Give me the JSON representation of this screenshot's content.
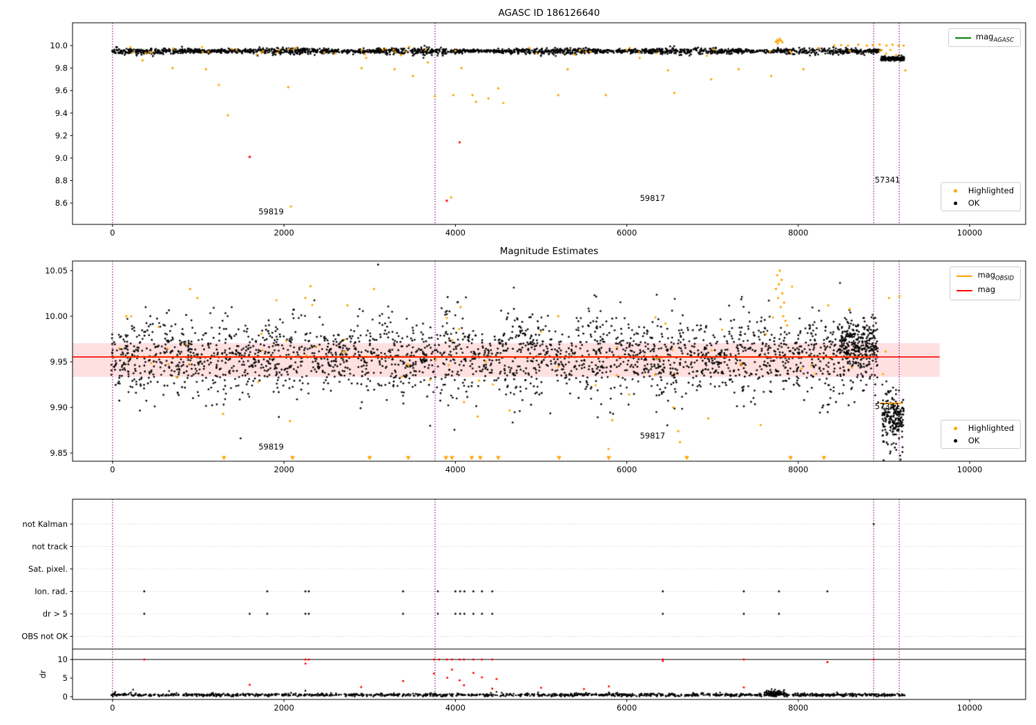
{
  "colors": {
    "ok": "#000000",
    "highlighted": "#ffa500",
    "bad": "#ff0000",
    "mag_line": "#ff0000",
    "obsid_line": "#ffa500",
    "agasc_line": "#008000",
    "vline": "#800080",
    "band_fill": "rgba(255,0,0,0.12)",
    "grid": "#b8b8b8",
    "frame": "#000000"
  },
  "chart_data": [
    {
      "id": "mag-agasc",
      "type": "scatter",
      "title": "AGASC ID 186126640",
      "xlim": [
        -467,
        10653
      ],
      "ylim": [
        8.41,
        10.203
      ],
      "xticks": [
        0,
        2000,
        4000,
        6000,
        8000,
        10000
      ],
      "yticks": [
        8.6,
        8.8,
        9.0,
        9.2,
        9.4,
        9.6,
        9.8,
        10.0
      ],
      "ytick_decimals": 1,
      "vlines": [
        0,
        3763,
        8880,
        9178
      ],
      "legend_lines": [
        {
          "prefix": "mag",
          "sub": "AGASC",
          "color": "#008000"
        }
      ],
      "legend_markers": [
        {
          "label": "Highlighted",
          "color": "#ffa500"
        },
        {
          "label": "OK",
          "color": "#000000"
        }
      ],
      "dense_series": [
        {
          "x0": -20,
          "x1": 8960,
          "mean": 9.951,
          "std": 0.016,
          "count": 2100
        },
        {
          "x0": 8960,
          "x1": 9240,
          "mean": 9.885,
          "std": 0.018,
          "count": 170
        }
      ],
      "highlighted_band": {
        "x0": 0,
        "x1": 9230,
        "mean": 9.952,
        "std": 0.022,
        "count": 55
      },
      "highlighted_points": [
        [
          350,
          9.87
        ],
        [
          700,
          9.8
        ],
        [
          1090,
          9.79
        ],
        [
          1240,
          9.65
        ],
        [
          1345,
          9.38
        ],
        [
          2050,
          9.63
        ],
        [
          2080,
          8.57
        ],
        [
          2600,
          9.93
        ],
        [
          2905,
          9.8
        ],
        [
          3290,
          9.79
        ],
        [
          3505,
          9.73
        ],
        [
          3680,
          9.85
        ],
        [
          3760,
          9.55
        ],
        [
          3950,
          8.65
        ],
        [
          3975,
          9.56
        ],
        [
          4070,
          9.8
        ],
        [
          4200,
          9.56
        ],
        [
          4240,
          9.5
        ],
        [
          4385,
          9.53
        ],
        [
          4500,
          9.62
        ],
        [
          4560,
          9.49
        ],
        [
          5200,
          9.56
        ],
        [
          5310,
          9.79
        ],
        [
          5755,
          9.56
        ],
        [
          6480,
          9.78
        ],
        [
          6555,
          9.58
        ],
        [
          6985,
          9.7
        ],
        [
          7305,
          9.79
        ],
        [
          7685,
          9.73
        ],
        [
          8060,
          9.79
        ],
        [
          9250,
          9.78
        ],
        [
          7740,
          10.035
        ],
        [
          7755,
          10.05
        ],
        [
          7770,
          10.04
        ],
        [
          7785,
          10.06
        ],
        [
          7800,
          10.045
        ],
        [
          7815,
          10.03
        ],
        [
          7760,
          10.02
        ],
        [
          8420,
          10.0
        ],
        [
          8500,
          10.005
        ],
        [
          8580,
          10.0
        ],
        [
          8700,
          10.008
        ],
        [
          8800,
          10.0
        ],
        [
          8870,
          10.005
        ],
        [
          8950,
          10.01
        ],
        [
          9030,
          10.0
        ],
        [
          9100,
          10.008
        ],
        [
          9170,
          10.0
        ],
        [
          9230,
          10.0
        ]
      ],
      "red_points": [
        [
          1600,
          9.01
        ],
        [
          3900,
          8.62
        ],
        [
          4050,
          9.14
        ]
      ],
      "annotations": [
        {
          "text": "59819",
          "x": 1850,
          "y": 8.5
        },
        {
          "text": "59817",
          "x": 6300,
          "y": 8.62
        },
        {
          "text": "57341",
          "x": 9040,
          "y": 8.78
        }
      ]
    },
    {
      "id": "magnitude-estimates",
      "type": "scatter",
      "title": "Magnitude Estimates",
      "xlim": [
        -467,
        10653
      ],
      "ylim": [
        9.841,
        10.0606
      ],
      "xticks": [
        0,
        2000,
        4000,
        6000,
        8000,
        10000
      ],
      "yticks": [
        9.85,
        9.9,
        9.95,
        10.0,
        10.05
      ],
      "ytick_decimals": 2,
      "vlines": [
        0,
        3763,
        8880,
        9178
      ],
      "legend_lines": [
        {
          "prefix": "mag",
          "sub": "OBSID",
          "color": "#ffa500"
        },
        {
          "prefix": "mag",
          "sub": "",
          "color": "#ff0000"
        }
      ],
      "legend_markers": [
        {
          "label": "Highlighted",
          "color": "#ffa500"
        },
        {
          "label": "OK",
          "color": "#000000"
        }
      ],
      "mag_band": {
        "y0": 9.9335,
        "y1": 9.9705,
        "x0": -467,
        "x1": 9650
      },
      "mag_line": {
        "y": 9.9554,
        "x0": -467,
        "x1": 9650
      },
      "obsid_segments": [
        {
          "y": 9.9554,
          "x0": -20,
          "x1": 8880
        },
        {
          "y": 9.9045,
          "x0": 8950,
          "x1": 9210
        }
      ],
      "dense_series": [
        {
          "x0": -20,
          "x1": 8950,
          "mean": 9.9555,
          "std": 0.021,
          "count": 2600,
          "modulated": true
        },
        {
          "x0": 8480,
          "x1": 8930,
          "mean": 9.972,
          "std": 0.012,
          "count": 240
        },
        {
          "x0": 8980,
          "x1": 9230,
          "mean": 9.888,
          "std": 0.015,
          "count": 200
        }
      ],
      "highlighted_band": {
        "x0": 0,
        "x1": 9200,
        "mean": 9.955,
        "std": 0.028,
        "count": 60
      },
      "highlighted_points": [
        [
          160,
          10.0
        ],
        [
          905,
          10.03
        ],
        [
          990,
          10.02
        ],
        [
          1290,
          9.893
        ],
        [
          1700,
          9.928
        ],
        [
          2070,
          9.885
        ],
        [
          2250,
          10.02
        ],
        [
          2310,
          10.033
        ],
        [
          2740,
          10.012
        ],
        [
          3050,
          10.03
        ],
        [
          3900,
          9.998
        ],
        [
          4060,
          10.01
        ],
        [
          4100,
          9.906
        ],
        [
          4260,
          9.89
        ],
        [
          5200,
          10.0
        ],
        [
          5830,
          9.886
        ],
        [
          6450,
          9.992
        ],
        [
          6540,
          9.9
        ],
        [
          6600,
          9.874
        ],
        [
          6620,
          9.862
        ],
        [
          6950,
          9.888
        ],
        [
          8350,
          10.012
        ],
        [
          8600,
          10.008
        ],
        [
          9060,
          10.02
        ],
        [
          9180,
          10.022
        ],
        [
          7740,
          10.03
        ],
        [
          7755,
          10.045
        ],
        [
          7765,
          10.02
        ],
        [
          7775,
          10.035
        ],
        [
          7785,
          10.05
        ],
        [
          7795,
          10.01
        ],
        [
          7805,
          10.04
        ],
        [
          7815,
          10.025
        ],
        [
          7825,
          10.0
        ],
        [
          7835,
          10.015
        ],
        [
          7850,
          9.995
        ],
        [
          7870,
          9.99
        ]
      ],
      "clipped_low_x": [
        1300,
        2100,
        3000,
        3450,
        3890,
        3960,
        4190,
        4290,
        4500,
        5210,
        5790,
        6700,
        7910,
        8300
      ],
      "annotations": [
        {
          "text": "59819",
          "x": 1850,
          "y": 9.854
        },
        {
          "text": "59817",
          "x": 6300,
          "y": 9.866
        },
        {
          "text": "57341",
          "x": 9040,
          "y": 9.898
        }
      ]
    },
    {
      "id": "flags",
      "type": "scatter",
      "categories": [
        "not Kalman",
        "not track",
        "Sat. pixel.",
        "Ion. rad.",
        "dr > 5",
        "OBS not OK"
      ],
      "vlines": [
        0,
        3763,
        8880,
        9178
      ],
      "points": {
        "not Kalman": [
          8880
        ],
        "Ion. rad.": [
          370,
          1805,
          2250,
          2290,
          3390,
          3795,
          4000,
          4055,
          4105,
          4210,
          4310,
          4430,
          6420,
          7365,
          7775,
          8340
        ],
        "dr > 5": [
          370,
          1600,
          1805,
          2250,
          2290,
          3390,
          3795,
          4000,
          4055,
          4105,
          4210,
          4310,
          4430,
          6420,
          7365,
          7775
        ]
      }
    },
    {
      "id": "dr",
      "type": "scatter",
      "ylabel": "dr",
      "xlim": [
        -467,
        10653
      ],
      "ylim": [
        -0.74,
        12.8
      ],
      "xticks": [
        0,
        2000,
        4000,
        6000,
        8000,
        10000
      ],
      "yticks": [
        0,
        5,
        10
      ],
      "hline": 10,
      "vlines": [
        0,
        3763,
        8880,
        9178
      ],
      "dense_series": [
        {
          "x0": -20,
          "x1": 9240,
          "mean": 0.48,
          "std": 0.2,
          "count": 1300
        }
      ],
      "bump": {
        "x0": 7600,
        "x1": 7840,
        "mean": 0.95,
        "std": 0.35,
        "count": 90
      },
      "black_points": [
        [
          240,
          1.9
        ],
        [
          660,
          1.5
        ],
        [
          2250,
          1.6
        ],
        [
          4480,
          1.3
        ],
        [
          5790,
          1.15
        ],
        [
          7690,
          2.05
        ],
        [
          7730,
          1.9
        ]
      ],
      "red_points_top": [
        [
          370,
          10
        ],
        [
          2250,
          10
        ],
        [
          2290,
          10
        ],
        [
          3750,
          10
        ],
        [
          3810,
          10
        ],
        [
          3900,
          10
        ],
        [
          3960,
          10
        ],
        [
          4050,
          10
        ],
        [
          4100,
          10
        ],
        [
          4210,
          10
        ],
        [
          4310,
          10
        ],
        [
          4430,
          10
        ],
        [
          6420,
          10
        ],
        [
          7365,
          10
        ],
        [
          8880,
          10
        ],
        [
          8340,
          9.3
        ]
      ],
      "red_points": [
        [
          1600,
          3.2
        ],
        [
          2900,
          2.6
        ],
        [
          3390,
          4.2
        ],
        [
          3750,
          6.2
        ],
        [
          3905,
          5.1
        ],
        [
          3960,
          7.3
        ],
        [
          4050,
          4.4
        ],
        [
          4100,
          3.1
        ],
        [
          4210,
          6.4
        ],
        [
          4310,
          5.2
        ],
        [
          4430,
          2.2
        ],
        [
          5000,
          2.4
        ],
        [
          5500,
          2.1
        ],
        [
          5790,
          2.8
        ],
        [
          6420,
          9.6
        ],
        [
          7365,
          2.5
        ],
        [
          2250,
          8.9
        ],
        [
          4480,
          4.8
        ]
      ]
    }
  ]
}
